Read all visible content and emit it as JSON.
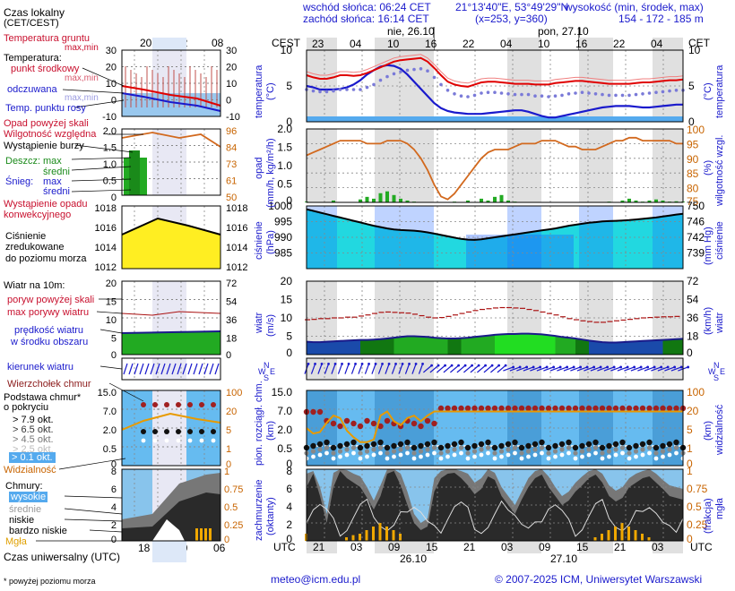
{
  "header": {
    "sunrise": "wschód słońca: 06:24 CET",
    "sunset": "zachód słońca: 16:14 CET",
    "coords": "21°13'40\"E, 53°49'29\"N",
    "grid": "(x=253, y=360)",
    "elev_title": "wysokość (min, środek, max)",
    "elev_values": "154 - 172 - 185 m"
  },
  "legend": {
    "local_time": "Czas lokalny",
    "local_time_sub": "(CET/CEST)",
    "ground_temp": "Temperatura gruntu",
    "ground_temp_sub": "max,min",
    "temperature": "Temperatura:",
    "mid_point": "punkt środkowy",
    "max_min": "max,min",
    "sensible": "odczuwana",
    "max_min2": "max,min",
    "dew_point": "Temp. punktu rosy",
    "precip_above": "Opad powyżej skali",
    "humidity": "Wilgotność względna",
    "storm": "Wystąpienie burzy",
    "rain": "Deszcz:",
    "rain_max": "max",
    "rain_mean": "średni",
    "snow": "Śnieg:",
    "snow_max": "max",
    "snow_mean": "średni",
    "convective": "Wystąpienie opadu",
    "convective2": "konwekcyjnego",
    "pressure": "Ciśnienie",
    "pressure2": "zredukowane",
    "pressure3": "do poziomu morza",
    "wind10": "Wiatr na 10m:",
    "gust_above": "poryw powyżej skali",
    "gust_max": "max porywy wiatru",
    "wind_speed": "prędkość wiatru",
    "wind_speed2": "w środku obszaru",
    "wind_dir": "kierunek wiatru",
    "cloud_top": "Wierzchołek chmur",
    "cloud_base": "Podstawa chmur*",
    "cloud_base2": "o pokryciu",
    "okt1": "> 7.9 okt.",
    "okt2": "> 6.5 okt.",
    "okt3": "> 4.5 okt.",
    "okt4": "> 2.5 okt.",
    "okt5": "> 0.1 okt.",
    "visibility": "Widzialność",
    "clouds": "Chmury:",
    "high": "wysokie",
    "mid": "średnie",
    "low": "niskie",
    "very_low": "bardzo niskie",
    "fog": "Mgła",
    "utc_time": "Czas uniwersalny (UTC)",
    "footnote": "* powyżej poziomu morza"
  },
  "axis_labels": {
    "cest": "CEST",
    "cet": "CET",
    "utc": "UTC",
    "day1": "nie, 26.10",
    "day2": "pon, 27.10",
    "date1": "26.10",
    "date2": "27.10",
    "temp_l": "temperatura",
    "temp_unit": "(°C)",
    "precip_l": "opad",
    "precip_unit": "(mm/h, kg/m²/h)",
    "hum_l": "wilgotność wzgl.",
    "hum_unit": "(%)",
    "pres_l": "ciśnienie",
    "pres_unit": "(hPa)",
    "pres_r_unit": "(mm Hg)",
    "wind_l": "wiatr",
    "wind_unit": "(m/s)",
    "wind_r_unit": "(km/h)",
    "cloudh_l": "pion. rozciągł. chm.",
    "cloudh_unit": "(km)",
    "vis_l": "widzialność",
    "vis_unit": "(km)",
    "cover_l": "zachmurzenie",
    "cover_unit": "(oktanty)",
    "fog_l": "mgła",
    "fog_unit": "(frakcja)",
    "compass_n": "N",
    "compass_e": "E",
    "compass_s": "S",
    "compass_w": "W"
  },
  "ticks": {
    "local_small": [
      "20",
      "02",
      "08"
    ],
    "utc_small": [
      "18",
      "00",
      "06"
    ],
    "local_main": [
      "23",
      "04",
      "10",
      "16",
      "22",
      "04",
      "10",
      "16",
      "22",
      "04"
    ],
    "utc_main": [
      "21",
      "03",
      "09",
      "15",
      "21",
      "03",
      "09",
      "15",
      "21",
      "03"
    ],
    "temp_small_l": [
      "30",
      "20",
      "10",
      "0",
      "-10"
    ],
    "temp_small_r": [
      "30",
      "20",
      "10",
      "0",
      "-10"
    ],
    "temp_main": [
      "10",
      "5",
      "0"
    ],
    "precip_small": [
      "2.0",
      "1.5",
      "1.0",
      "0.5",
      "0"
    ],
    "hum_small": [
      "96",
      "84",
      "73",
      "61",
      "50"
    ],
    "precip_main": [
      "2.0",
      "1.5",
      "1.0",
      "0.5",
      "0"
    ],
    "hum_main": [
      "100",
      "95",
      "90",
      "85",
      "80",
      "75"
    ],
    "pres_small": [
      "1018",
      "1016",
      "1014",
      "1012"
    ],
    "pres_main": [
      "1000",
      "995",
      "990",
      "985"
    ],
    "pres_mm": [
      "750",
      "746",
      "742",
      "739"
    ],
    "wind_small_l": [
      "20",
      "15",
      "10",
      "5",
      "0"
    ],
    "wind_small_r": [
      "72",
      "54",
      "36",
      "18",
      "0"
    ],
    "wind_main": [
      "20",
      "15",
      "10",
      "5",
      "0"
    ],
    "wind_main_r": [
      "72",
      "54",
      "36",
      "18",
      "0"
    ],
    "cloud_small_l": [
      "15.0",
      "7.0",
      "2.0",
      "0.5",
      "0"
    ],
    "cloud_small_r": [
      "100",
      "20",
      "5",
      "1",
      "0"
    ],
    "cloud_main": [
      "15.0",
      "7.0",
      "2.0",
      "0.5",
      "0"
    ],
    "vis_main": [
      "100",
      "20",
      "5",
      "1",
      "0"
    ],
    "cover_small_l": [
      "8",
      "6",
      "4",
      "2",
      "0"
    ],
    "cover_small_r": [
      "1",
      "0.75",
      "0.5",
      "0.25",
      "0"
    ],
    "cover_main": [
      "8",
      "6",
      "4",
      "2",
      "0"
    ],
    "fog_main": [
      "1",
      "0.75",
      "0.5",
      "0.25",
      "0"
    ]
  },
  "footer": {
    "email": "meteo@icm.edu.pl",
    "copyright": "© 2007-2025 ICM, Uniwersytet Warszawski"
  },
  "chart_data": [
    {
      "type": "line",
      "name": "temperature",
      "ylabel": "temperatura (°C)",
      "ylim": [
        0,
        10
      ],
      "x_hours_utc": [
        21,
        22,
        23,
        0,
        1,
        2,
        3,
        4,
        5,
        6,
        7,
        8,
        9,
        10,
        11,
        12,
        13,
        14,
        15,
        16,
        17,
        18,
        19,
        20,
        21,
        22,
        23,
        0,
        1,
        2,
        3,
        4,
        5,
        6,
        7,
        8,
        9,
        10,
        11,
        12,
        13,
        14,
        15,
        16,
        17,
        18,
        19,
        20,
        21,
        22,
        23,
        0,
        1,
        2,
        3,
        4,
        5
      ],
      "series": [
        {
          "name": "punkt środkowy",
          "values": [
            6.5,
            6.2,
            6.0,
            6.0,
            6.2,
            6.5,
            6.5,
            6.4,
            6.5,
            6.8,
            7.2,
            7.6,
            8.0,
            8.4,
            8.6,
            8.7,
            8.8,
            8.9,
            8.4,
            7.5,
            6.5,
            5.6,
            5.2,
            5.0,
            4.9,
            5.2,
            5.5,
            5.6,
            5.6,
            5.5,
            5.4,
            5.3,
            5.3,
            5.3,
            5.2,
            5.2,
            5.2,
            5.4,
            5.5,
            5.6,
            5.7,
            5.7,
            5.6,
            5.5,
            5.4,
            5.3,
            5.3,
            5.3,
            5.3,
            5.4,
            5.5,
            5.5,
            5.6,
            5.7,
            5.8,
            5.8,
            5.9
          ]
        },
        {
          "name": "odczuwana",
          "values": [
            4.5,
            4.3,
            4.2,
            4.2,
            4.3,
            4.5,
            4.5,
            4.5,
            4.5,
            4.8,
            5.2,
            5.8,
            6.3,
            6.7,
            7.0,
            7.2,
            7.3,
            7.4,
            7.1,
            6.2,
            5.2,
            4.4,
            3.9,
            3.6,
            3.5,
            3.7,
            4.0,
            4.1,
            4.1,
            4.0,
            3.9,
            3.8,
            3.8,
            3.8,
            3.6,
            3.6,
            3.5,
            3.6,
            3.7,
            3.9,
            4.0,
            4.1,
            4.0,
            3.9,
            3.8,
            3.7,
            3.7,
            3.7,
            3.7,
            3.8,
            3.9,
            4.0,
            4.1,
            4.2,
            4.3,
            4.4,
            4.4
          ]
        },
        {
          "name": "Temp. punktu rosy",
          "values": [
            5.0,
            4.8,
            4.5,
            4.5,
            4.5,
            4.6,
            4.8,
            5.2,
            5.8,
            6.6,
            7.2,
            7.7,
            7.9,
            7.8,
            7.4,
            6.6,
            5.6,
            4.6,
            3.6,
            2.6,
            1.9,
            1.5,
            1.3,
            1.2,
            1.1,
            1.1,
            1.1,
            1.2,
            1.3,
            1.4,
            1.5,
            1.6,
            1.6,
            1.4,
            1.1,
            0.8,
            0.6,
            0.6,
            0.8,
            1.0,
            1.2,
            1.4,
            1.6,
            1.8,
            2.0,
            2.1,
            2.2,
            2.2,
            2.2,
            2.1,
            2.0,
            2.0,
            2.1,
            2.2,
            2.3,
            2.4,
            2.4
          ]
        }
      ]
    },
    {
      "type": "line",
      "name": "humidity",
      "ylabel": "wilgotność wzgl. (%)",
      "ylim": [
        75,
        100
      ],
      "values": [
        91,
        92,
        93,
        94,
        95,
        96,
        96,
        96,
        96,
        95,
        95,
        95,
        96,
        96,
        96,
        95,
        93,
        90,
        86,
        81,
        77,
        76,
        78,
        81,
        84,
        87,
        90,
        92,
        93,
        93,
        93,
        94,
        95,
        95,
        95,
        96,
        96,
        96,
        95,
        94,
        94,
        93,
        93,
        93,
        94,
        95,
        96,
        96,
        97,
        97,
        96,
        96,
        96,
        96,
        96,
        95,
        95
      ]
    },
    {
      "type": "bar",
      "name": "precipitation",
      "ylabel": "opad (mm/h, kg/m²/h)",
      "ylim": [
        0,
        2
      ],
      "values": [
        0.02,
        0.0,
        0.0,
        0.0,
        0.05,
        0.0,
        0.0,
        0.0,
        0.08,
        0.15,
        0.1,
        0.25,
        0.3,
        0.2,
        0.1,
        0.05,
        0.02,
        0.0,
        0.0,
        0.0,
        0.0,
        0.0,
        0.02,
        0.0,
        0.05,
        0.0,
        0.1,
        0.05,
        0.15,
        0.2,
        0.05,
        0.02,
        0.0,
        0.0,
        0.0,
        0.0,
        0.0,
        0.0,
        0.0,
        0.0,
        0.0,
        0.0,
        0.0,
        0.0,
        0.0,
        0.02,
        0.0,
        0.05,
        0.1,
        0.05,
        0.02,
        0.05,
        0.08,
        0.05,
        0.02,
        0.03,
        0.02
      ]
    },
    {
      "type": "line",
      "name": "pressure",
      "ylabel": "ciśnienie (hPa)",
      "ylim": [
        981,
        1000
      ],
      "values": [
        999.0,
        998.5,
        998.0,
        997.5,
        997.0,
        996.5,
        996.0,
        995.5,
        995.0,
        994.5,
        994.0,
        993.6,
        993.2,
        992.9,
        992.7,
        992.6,
        992.5,
        992.3,
        992.0,
        991.6,
        991.2,
        990.8,
        990.4,
        990.0,
        989.8,
        989.7,
        989.9,
        990.2,
        990.5,
        990.8,
        991.1,
        991.4,
        991.7,
        992.0,
        992.3,
        992.6,
        992.9,
        993.2,
        993.6,
        994.0,
        994.3,
        994.6,
        994.9,
        995.1,
        995.3,
        995.4,
        995.5,
        995.6,
        995.7,
        995.9,
        996.1,
        996.3,
        996.5,
        996.8,
        997.1,
        997.4,
        997.6
      ]
    },
    {
      "type": "line",
      "name": "wind",
      "ylabel": "wiatr (m/s)",
      "ylim": [
        0,
        20
      ],
      "series": [
        {
          "name": "prędkość wiatru",
          "values": [
            3.5,
            3.4,
            3.4,
            3.5,
            3.6,
            3.7,
            3.8,
            3.9,
            4.0,
            4.0,
            4.1,
            4.2,
            4.4,
            4.6,
            4.8,
            5.0,
            5.0,
            4.9,
            4.8,
            4.6,
            4.5,
            4.4,
            4.4,
            4.5,
            4.6,
            4.8,
            5.0,
            5.2,
            5.4,
            5.5,
            5.6,
            5.6,
            5.7,
            5.7,
            5.6,
            5.5,
            5.3,
            5.1,
            4.8,
            4.6,
            4.4,
            4.1,
            3.8,
            3.6,
            3.4,
            3.3,
            3.3,
            3.4,
            3.5,
            3.6,
            3.7,
            3.8,
            3.9,
            4.0,
            4.1,
            4.2,
            4.3
          ]
        },
        {
          "name": "max porywy wiatru",
          "values": [
            9.5,
            9.6,
            9.8,
            9.8,
            10.0,
            10.0,
            10.2,
            10.2,
            10.5,
            10.8,
            11.2,
            11.5,
            11.6,
            11.5,
            11.4,
            11.3,
            11.0,
            10.6,
            10.2,
            10.0,
            10.1,
            10.4,
            10.8,
            11.2,
            11.6,
            12.0,
            12.3,
            12.5,
            12.7,
            12.8,
            12.8,
            12.7,
            12.6,
            12.3,
            12.0,
            11.6,
            11.2,
            10.8,
            10.3,
            9.8,
            9.5,
            9.2,
            9.0,
            8.8,
            8.8,
            9.0,
            9.2,
            9.4,
            9.6,
            9.8,
            10.0,
            10.1,
            10.2,
            10.3,
            10.3,
            10.4,
            10.4
          ]
        }
      ]
    },
    {
      "type": "line",
      "name": "visibility",
      "ylabel": "widzialność (km)",
      "values": [
        12,
        8,
        9,
        18,
        30,
        25,
        10,
        6,
        4,
        4,
        5,
        30,
        40,
        20,
        15,
        25,
        30,
        20,
        30,
        40,
        40,
        40,
        40,
        40,
        40,
        40,
        40,
        40,
        40,
        40,
        40,
        40,
        40,
        40,
        40,
        40,
        40,
        40,
        40,
        40,
        40,
        40,
        40,
        40,
        40,
        40,
        40,
        40,
        40,
        40,
        40,
        40,
        40,
        40,
        40,
        40,
        40
      ]
    }
  ]
}
